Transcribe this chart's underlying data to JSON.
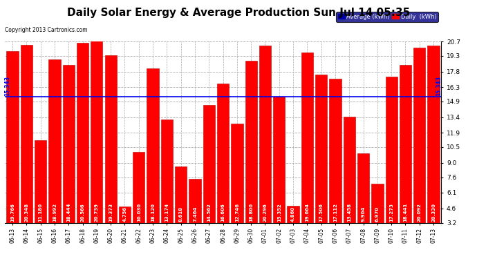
{
  "title": "Daily Solar Energy & Average Production Sun Jul 14 05:35",
  "copyright": "Copyright 2013 Cartronics.com",
  "categories": [
    "06-13",
    "06-14",
    "06-15",
    "06-16",
    "06-17",
    "06-18",
    "06-19",
    "06-20",
    "06-21",
    "06-22",
    "06-23",
    "06-24",
    "06-25",
    "06-26",
    "06-27",
    "06-28",
    "06-29",
    "06-30",
    "07-01",
    "07-02",
    "07-03",
    "07-04",
    "07-05",
    "07-06",
    "07-07",
    "07-08",
    "07-09",
    "07-10",
    "07-11",
    "07-12",
    "07-13"
  ],
  "values": [
    19.766,
    20.348,
    11.18,
    18.992,
    18.444,
    20.566,
    20.739,
    19.373,
    4.756,
    10.03,
    18.12,
    13.174,
    8.618,
    7.464,
    14.562,
    16.606,
    12.746,
    18.8,
    20.296,
    15.352,
    4.86,
    19.664,
    17.506,
    17.112,
    13.458,
    9.904,
    6.97,
    17.273,
    18.441,
    20.092,
    20.33
  ],
  "average": 15.343,
  "bar_color": "#FF0000",
  "avg_line_color": "#0000EE",
  "background_color": "#FFFFFF",
  "plot_bg_color": "#FFFFFF",
  "grid_color": "#AAAAAA",
  "title_fontsize": 11,
  "ylabel_values": [
    3.2,
    4.6,
    6.1,
    7.6,
    9.0,
    10.5,
    11.9,
    13.4,
    14.9,
    16.3,
    17.8,
    19.3,
    20.7
  ],
  "ylim": [
    3.2,
    20.7
  ],
  "legend_avg_color": "#0000AA",
  "legend_daily_color": "#FF0000",
  "bar_edge_color": "#BB0000",
  "avg_label": "15.343",
  "value_text_color": "#FFFFFF",
  "value_fontsize": 5.0
}
